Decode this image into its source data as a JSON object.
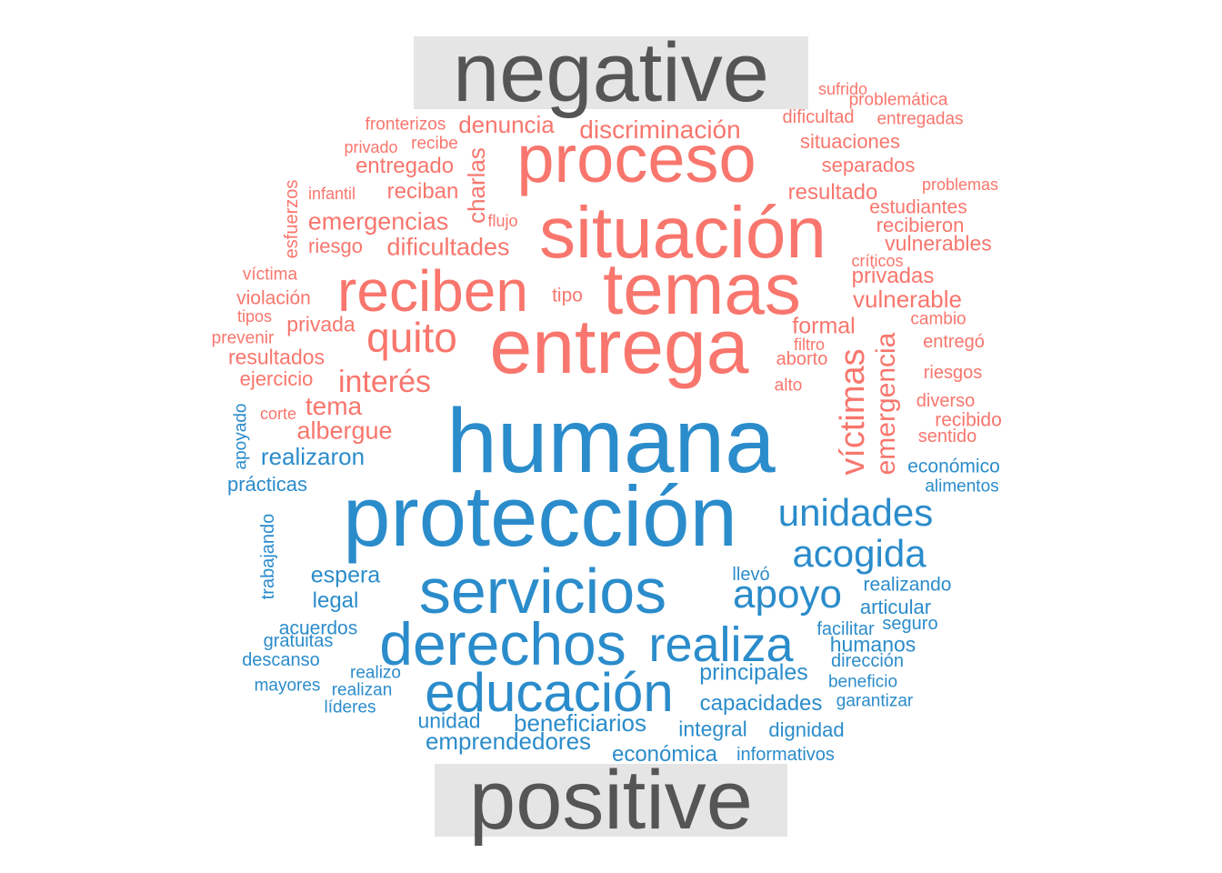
{
  "colors": {
    "negative": "#f8766d",
    "positive": "#2b8ccb",
    "label_bg": "#e5e5e5",
    "label_text": "#555555"
  },
  "labels": {
    "negative": "negative",
    "positive": "positive"
  },
  "groups": [
    {
      "sentiment": "negative",
      "words": [
        {
          "text": "entrega",
          "weight": 90
        },
        {
          "text": "situación",
          "weight": 85
        },
        {
          "text": "temas",
          "weight": 82
        },
        {
          "text": "proceso",
          "weight": 78
        },
        {
          "text": "reciben",
          "weight": 68
        },
        {
          "text": "quito",
          "weight": 48
        },
        {
          "text": "víctimas",
          "weight": 40,
          "rotated": true
        },
        {
          "text": "emergencia",
          "weight": 33,
          "rotated": true
        },
        {
          "text": "interés",
          "weight": 36
        },
        {
          "text": "discriminación",
          "weight": 30
        },
        {
          "text": "denuncia",
          "weight": 28
        },
        {
          "text": "charlas",
          "weight": 28,
          "rotated": true
        },
        {
          "text": "dificultades",
          "weight": 28
        },
        {
          "text": "emergencias",
          "weight": 28
        },
        {
          "text": "tema",
          "weight": 30
        },
        {
          "text": "albergue",
          "weight": 28
        },
        {
          "text": "vulnerable",
          "weight": 26
        },
        {
          "text": "formal",
          "weight": 26
        },
        {
          "text": "privadas",
          "weight": 24
        },
        {
          "text": "resultado",
          "weight": 24
        },
        {
          "text": "situaciones",
          "weight": 23
        },
        {
          "text": "separados",
          "weight": 23
        },
        {
          "text": "entregado",
          "weight": 24
        },
        {
          "text": "reciban",
          "weight": 24
        },
        {
          "text": "privada",
          "weight": 23
        },
        {
          "text": "resultados",
          "weight": 23
        },
        {
          "text": "vulnerables",
          "weight": 23
        },
        {
          "text": "recibieron",
          "weight": 22
        },
        {
          "text": "estudiantes",
          "weight": 21
        },
        {
          "text": "riesgo",
          "weight": 22
        },
        {
          "text": "ejercicio",
          "weight": 22
        },
        {
          "text": "violación",
          "weight": 20
        },
        {
          "text": "esfuerzos",
          "weight": 20,
          "rotated": true
        },
        {
          "text": "tipo",
          "weight": 20
        },
        {
          "text": "riesgos",
          "weight": 20
        },
        {
          "text": "recibido",
          "weight": 20
        },
        {
          "text": "diverso",
          "weight": 20
        },
        {
          "text": "entregó",
          "weight": 20
        },
        {
          "text": "aborto",
          "weight": 20
        },
        {
          "text": "sentido",
          "weight": 19
        },
        {
          "text": "dificultad",
          "weight": 19
        },
        {
          "text": "fronterizos",
          "weight": 19
        },
        {
          "text": "recibe",
          "weight": 19
        },
        {
          "text": "alto",
          "weight": 19
        },
        {
          "text": "víctima",
          "weight": 19
        },
        {
          "text": "prevenir",
          "weight": 19
        },
        {
          "text": "cambio",
          "weight": 19
        },
        {
          "text": "entregadas",
          "weight": 18
        },
        {
          "text": "problemática",
          "weight": 18
        },
        {
          "text": "sufrido",
          "weight": 18
        },
        {
          "text": "problemas",
          "weight": 18
        },
        {
          "text": "críticos",
          "weight": 18
        },
        {
          "text": "privado",
          "weight": 18
        },
        {
          "text": "infantil",
          "weight": 18
        },
        {
          "text": "flujo",
          "weight": 18
        },
        {
          "text": "tipos",
          "weight": 18
        },
        {
          "text": "filtro",
          "weight": 18
        },
        {
          "text": "corte",
          "weight": 18
        }
      ]
    },
    {
      "sentiment": "positive",
      "words": [
        {
          "text": "humana",
          "weight": 100
        },
        {
          "text": "protección",
          "weight": 95
        },
        {
          "text": "servicios",
          "weight": 72
        },
        {
          "text": "derechos",
          "weight": 68
        },
        {
          "text": "educación",
          "weight": 62
        },
        {
          "text": "realiza",
          "weight": 56
        },
        {
          "text": "apoyo",
          "weight": 46
        },
        {
          "text": "unidades",
          "weight": 43
        },
        {
          "text": "acogida",
          "weight": 42
        },
        {
          "text": "realizaron",
          "weight": 27
        },
        {
          "text": "beneficiarios",
          "weight": 27
        },
        {
          "text": "principales",
          "weight": 26
        },
        {
          "text": "emprendedores",
          "weight": 26
        },
        {
          "text": "espera",
          "weight": 26
        },
        {
          "text": "legal",
          "weight": 25
        },
        {
          "text": "capacidades",
          "weight": 24
        },
        {
          "text": "integral",
          "weight": 24
        },
        {
          "text": "económica",
          "weight": 24
        },
        {
          "text": "unidad",
          "weight": 24
        },
        {
          "text": "humanos",
          "weight": 23
        },
        {
          "text": "prácticas",
          "weight": 22
        },
        {
          "text": "dignidad",
          "weight": 22
        },
        {
          "text": "articular",
          "weight": 22
        },
        {
          "text": "económico",
          "weight": 21
        },
        {
          "text": "acuerdos",
          "weight": 21
        },
        {
          "text": "realizando",
          "weight": 21
        },
        {
          "text": "trabajando",
          "weight": 20,
          "rotated": true
        },
        {
          "text": "apoyado",
          "weight": 19,
          "rotated": true
        },
        {
          "text": "llevó",
          "weight": 20
        },
        {
          "text": "informativos",
          "weight": 20
        },
        {
          "text": "descanso",
          "weight": 20
        },
        {
          "text": "gratuitas",
          "weight": 20
        },
        {
          "text": "dirección",
          "weight": 20
        },
        {
          "text": "seguro",
          "weight": 20
        },
        {
          "text": "facilitar",
          "weight": 20
        },
        {
          "text": "beneficio",
          "weight": 19
        },
        {
          "text": "mayores",
          "weight": 19
        },
        {
          "text": "realizo",
          "weight": 19
        },
        {
          "text": "realizan",
          "weight": 19
        },
        {
          "text": "garantizar",
          "weight": 19
        },
        {
          "text": "alimentos",
          "weight": 19
        },
        {
          "text": "líderes",
          "weight": 19
        }
      ]
    }
  ]
}
